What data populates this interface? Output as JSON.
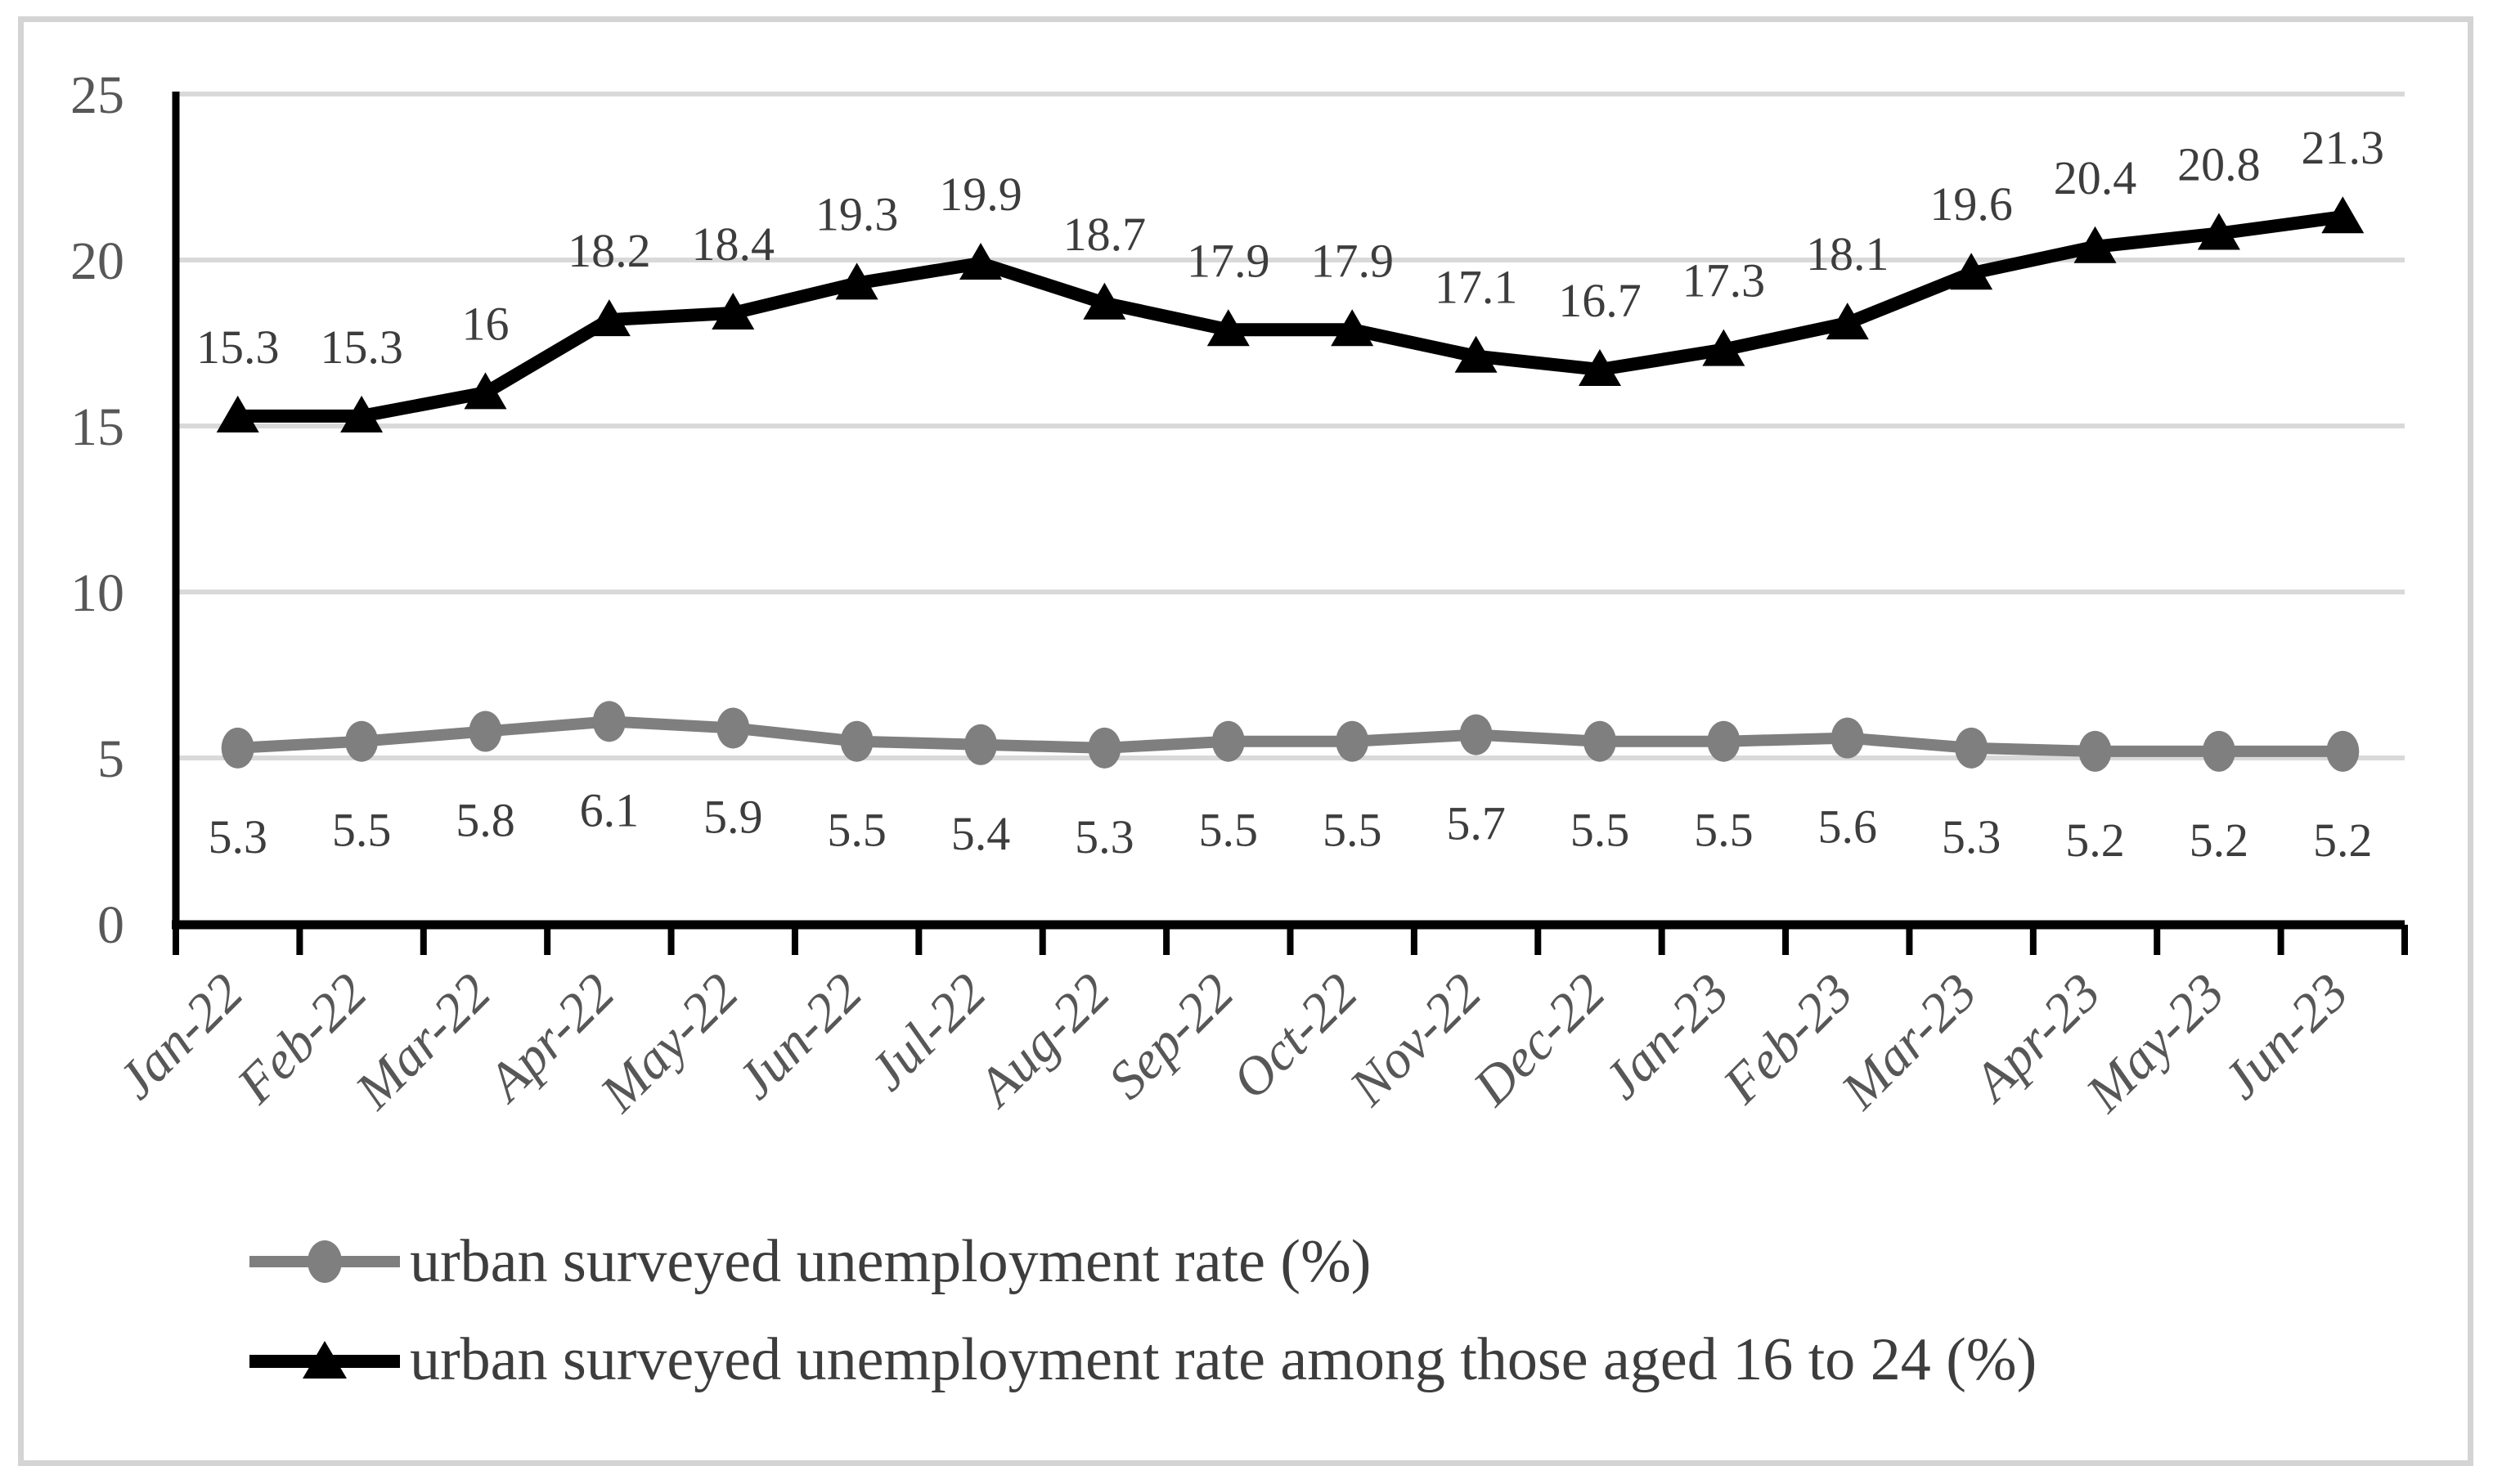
{
  "chart_data": {
    "type": "line",
    "categories": [
      "Jan-22",
      "Feb-22",
      "Mar-22",
      "Apr-22",
      "May-22",
      "Jun-22",
      "Jul-22",
      "Aug-22",
      "Sep-22",
      "Oct-22",
      "Nov-22",
      "Dec-22",
      "Jan-23",
      "Feb-23",
      "Mar-23",
      "Apr-23",
      "May-23",
      "Jun-23"
    ],
    "series": [
      {
        "name": "urban surveyed unemployment rate (%)",
        "values": [
          5.3,
          5.5,
          5.8,
          6.1,
          5.9,
          5.5,
          5.4,
          5.3,
          5.5,
          5.5,
          5.7,
          5.5,
          5.5,
          5.6,
          5.3,
          5.2,
          5.2,
          5.2
        ],
        "color": "#7f7f7f",
        "marker": "circle",
        "label_position": "below"
      },
      {
        "name": "urban surveyed unemployment rate among those aged 16 to 24 (%)",
        "values": [
          15.3,
          15.3,
          16,
          18.2,
          18.4,
          19.3,
          19.9,
          18.7,
          17.9,
          17.9,
          17.1,
          16.7,
          17.3,
          18.1,
          19.6,
          20.4,
          20.8,
          21.3
        ],
        "color": "#000000",
        "marker": "triangle",
        "label_position": "above"
      }
    ],
    "ylim": [
      0,
      25
    ],
    "yticks": [
      0,
      5,
      10,
      15,
      20,
      25
    ],
    "grid": true,
    "legend_position": "bottom-left",
    "xlabel": "",
    "ylabel": "",
    "title": "",
    "colors": {
      "gridline": "#d9d9d9",
      "axis": "#000000",
      "tick_label": "#575757",
      "data_label": "#3d3d3d",
      "border": "#d4d4d4"
    }
  }
}
